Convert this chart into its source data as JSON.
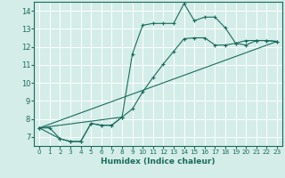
{
  "xlabel": "Humidex (Indice chaleur)",
  "xlim": [
    -0.5,
    23.5
  ],
  "ylim": [
    6.5,
    14.5
  ],
  "xticks": [
    0,
    1,
    2,
    3,
    4,
    5,
    6,
    7,
    8,
    9,
    10,
    11,
    12,
    13,
    14,
    15,
    16,
    17,
    18,
    19,
    20,
    21,
    22,
    23
  ],
  "yticks": [
    7,
    8,
    9,
    10,
    11,
    12,
    13,
    14
  ],
  "bg_color": "#d4ede8",
  "line_color": "#1a6b5e",
  "line1_x": [
    0,
    1,
    2,
    3,
    4,
    5,
    6,
    7,
    8,
    9,
    10,
    11,
    12,
    13,
    14,
    15,
    16,
    17,
    18,
    19,
    20,
    21,
    22,
    23
  ],
  "line1_y": [
    7.5,
    7.5,
    6.9,
    6.75,
    6.75,
    7.75,
    7.65,
    7.65,
    8.1,
    11.6,
    13.2,
    13.3,
    13.3,
    13.3,
    14.4,
    13.45,
    13.65,
    13.65,
    13.05,
    12.2,
    12.1,
    12.35,
    12.35,
    12.3
  ],
  "line2_x": [
    0,
    2,
    3,
    4,
    5,
    6,
    7,
    8
  ],
  "line2_y": [
    7.5,
    6.9,
    6.75,
    6.75,
    7.75,
    7.65,
    7.65,
    8.1
  ],
  "line3_x": [
    0,
    8,
    9,
    10,
    11,
    12,
    13,
    14,
    15,
    16,
    17,
    18,
    19,
    20,
    21,
    22,
    23
  ],
  "line3_y": [
    7.5,
    8.1,
    8.55,
    9.5,
    10.3,
    11.05,
    11.75,
    12.45,
    12.5,
    12.5,
    12.1,
    12.1,
    12.2,
    12.35,
    12.35,
    12.35,
    12.3
  ]
}
